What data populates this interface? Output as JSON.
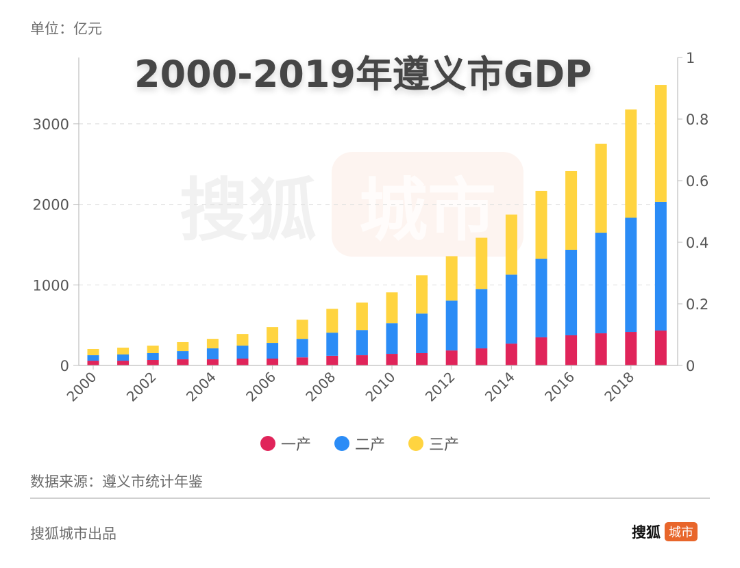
{
  "header": {
    "unit_label": "单位：亿元",
    "title": "2000-2019年遵义市GDP"
  },
  "watermark": {
    "text": "搜狐",
    "badge": "城市"
  },
  "colors": {
    "primary": "#E0245A",
    "secondary": "#2B8CF6",
    "tertiary": "#FFD440",
    "axis": "#bdbdbd",
    "grid": "#e2e2e2",
    "tick_text": "#555555",
    "brand_orange": "#E8662B"
  },
  "footer": {
    "source": "数据来源：遵义市统计年鉴",
    "producer": "搜狐城市出品",
    "brand_name": "搜狐",
    "brand_badge": "城市"
  },
  "chart_data": {
    "type": "bar",
    "stacked": true,
    "title": "2000-2019年遵义市GDP",
    "ylabel": "单位：亿元",
    "xlabel": "",
    "categories": [
      "2000",
      "2001",
      "2002",
      "2003",
      "2004",
      "2005",
      "2006",
      "2007",
      "2008",
      "2009",
      "2010",
      "2011",
      "2012",
      "2013",
      "2014",
      "2015",
      "2016",
      "2017",
      "2018",
      "2019"
    ],
    "x_tick_labels": [
      "2000",
      "2002",
      "2004",
      "2006",
      "2008",
      "2010",
      "2012",
      "2014",
      "2016",
      "2018"
    ],
    "series": [
      {
        "name": "一产",
        "color": "#E0245A",
        "values": [
          59,
          59,
          68,
          76,
          76,
          85,
          85,
          100,
          120,
          127,
          144,
          153,
          186,
          212,
          271,
          349,
          374,
          399,
          416,
          433
        ]
      },
      {
        "name": "二产",
        "color": "#2B8CF6",
        "values": [
          68,
          77,
          85,
          102,
          136,
          161,
          195,
          230,
          287,
          313,
          381,
          491,
          619,
          737,
          856,
          976,
          1062,
          1249,
          1419,
          1598
        ]
      },
      {
        "name": "三产",
        "color": "#FFD440",
        "values": [
          77,
          85,
          93,
          111,
          118,
          144,
          195,
          238,
          296,
          340,
          382,
          475,
          551,
          636,
          746,
          842,
          977,
          1105,
          1343,
          1452
        ]
      }
    ],
    "ylim": [
      0,
      3800
    ],
    "y_ticks": [
      0,
      1000,
      2000,
      3000
    ],
    "y2lim": [
      0,
      1
    ],
    "y2_ticks": [
      "0",
      "0.2",
      "0.4",
      "0.6",
      "0.8",
      "1"
    ],
    "grid": true,
    "legend": {
      "position": "bottom-center",
      "entries": [
        "一产",
        "二产",
        "三产"
      ]
    }
  }
}
